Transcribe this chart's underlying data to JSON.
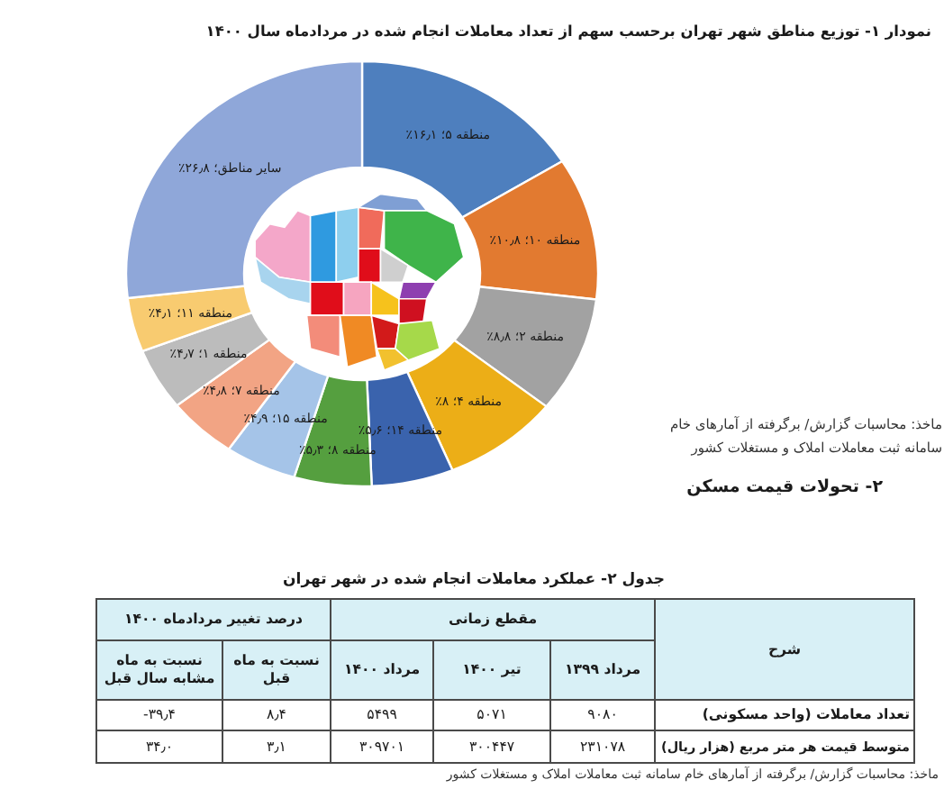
{
  "chart_data": [
    {
      "type": "donut",
      "title": "نمودار ۱- توزیع مناطق شهر تهران برحسب سهم از تعداد معاملات انجام شده در مردادماه سال ۱۴۰۰",
      "categories": [
        "منطقه ۵",
        "منطقه ۱۰",
        "منطقه ۲",
        "منطقه ۴",
        "منطقه ۱۴",
        "منطقه ۸",
        "منطقه ۱۵",
        "منطقه ۷",
        "منطقه ۱",
        "منطقه ۱۱",
        "سایر مناطق"
      ],
      "values": [
        16.1,
        10.8,
        8.8,
        8.0,
        5.6,
        5.3,
        4.9,
        4.8,
        4.7,
        4.1,
        26.8
      ],
      "value_labels": [
        "؛ ۱۶٫۱٪",
        "؛ ۱۰٫۸٪",
        "؛ ۸٫۸٪",
        "؛ ۸٪",
        "؛ ۵٫۶٪",
        "؛ ۵٫۳٪",
        "؛ ۴٫۹٪",
        "؛ ۴٫۸٪",
        "؛ ۴٫۷٪",
        "؛ ۴٫۱٪",
        "؛ ۲۶٫۸٪"
      ],
      "colors": [
        "#4e7fbe",
        "#e27a30",
        "#a2a2a2",
        "#ecae17",
        "#3a63ad",
        "#559f3f",
        "#a5c4e8",
        "#f2a484",
        "#bcbcbc",
        "#f8cb70",
        "#8fa7d9"
      ],
      "annotations": [
        "ماخذ: محاسبات گزارش/ برگرفته از آمارهای خام سامانه ثبت معاملات املاک و مستغلات کشور"
      ]
    },
    {
      "type": "other",
      "title": "۲- تحولات قیمت مسکن",
      "subtitle": "جدول ۲- عملکرد معاملات انجام شده در شهر تهران",
      "annotations": [
        "شرح",
        "مقطع زمانی",
        "درصد تغییر مردادماه ۱۴۰۰",
        "مرداد ۱۳۹۹",
        "تیر ۱۴۰۰",
        "مرداد ۱۴۰۰",
        "نسبت به ماه قبل",
        "نسبت به ماه مشابه سال قبل",
        "تعداد معاملات (واحد مسکونی)",
        "۹۰۸۰",
        "۵۰۷۱",
        "۵۴۹۹",
        "۸٫۴",
        "-۳۹٫۴",
        "متوسط قیمت هر متر مربع (هزار ریال)",
        "۲۳۱۰۷۸",
        "۳۰۰۴۴۷",
        "۳۰۹۷۰۱",
        "۳٫۱",
        "۳۴٫۰",
        "ماخذ: محاسبات گزارش/ برگرفته از آمارهای خام سامانه ثبت معاملات املاک و مستغلات کشور"
      ]
    }
  ]
}
